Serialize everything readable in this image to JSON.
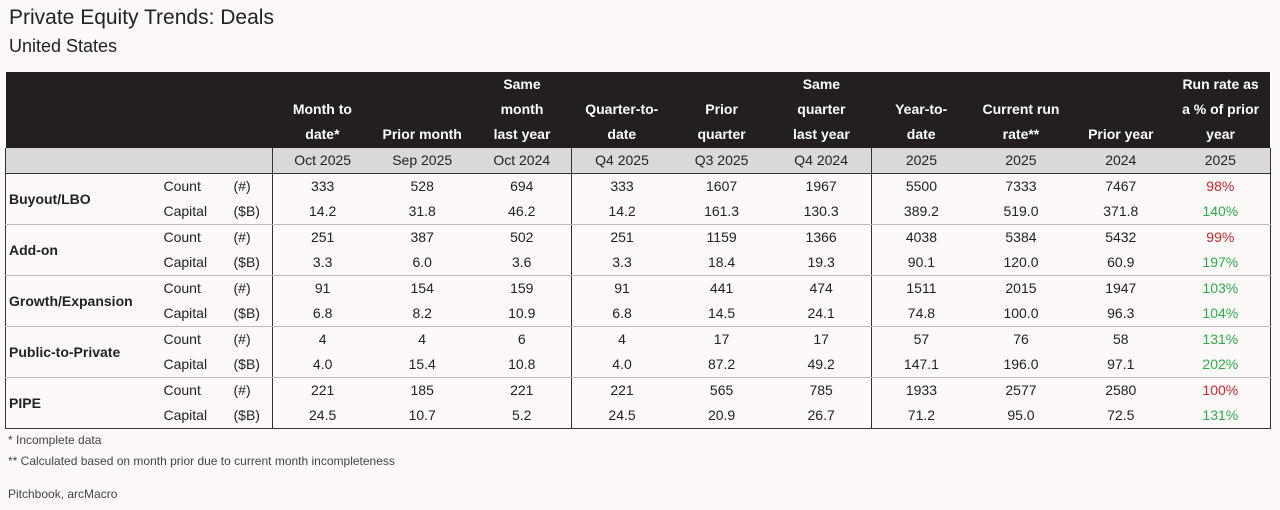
{
  "header": {
    "title": "Private Equity Trends: Deals",
    "subtitle": "United States"
  },
  "table": {
    "columns": [
      [
        "Month to",
        "date*"
      ],
      [
        "Prior month"
      ],
      [
        "Same",
        "month",
        "last year"
      ],
      [
        "Quarter-to-",
        "date"
      ],
      [
        "Prior",
        "quarter"
      ],
      [
        "Same",
        "quarter",
        "last year"
      ],
      [
        "Year-to-",
        "date"
      ],
      [
        "Current run",
        "rate**"
      ],
      [
        "Prior year"
      ],
      [
        "Run rate as",
        "a % of prior",
        "year"
      ]
    ],
    "periods": [
      "Oct 2025",
      "Sep 2025",
      "Oct 2024",
      "Q4 2025",
      "Q3 2025",
      "Q4 2024",
      "2025",
      "2025",
      "2024",
      "2025"
    ],
    "groups": [
      {
        "name": "Buyout/LBO",
        "rows": [
          {
            "metric": "Count",
            "unit": "(#)",
            "cells": [
              "333",
              "528",
              "694",
              "333",
              "1607",
              "1967",
              "5500",
              "7333",
              "7467",
              "98%"
            ],
            "last_cell_color": "#c0282d"
          },
          {
            "metric": "Capital",
            "unit": "($B)",
            "cells": [
              "14.2",
              "31.8",
              "46.2",
              "14.2",
              "161.3",
              "130.3",
              "389.2",
              "519.0",
              "371.8",
              "140%"
            ],
            "last_cell_color": "#2eaa4a"
          }
        ]
      },
      {
        "name": "Add-on",
        "rows": [
          {
            "metric": "Count",
            "unit": "(#)",
            "cells": [
              "251",
              "387",
              "502",
              "251",
              "1159",
              "1366",
              "4038",
              "5384",
              "5432",
              "99%"
            ],
            "last_cell_color": "#c0282d"
          },
          {
            "metric": "Capital",
            "unit": "($B)",
            "cells": [
              "3.3",
              "6.0",
              "3.6",
              "3.3",
              "18.4",
              "19.3",
              "90.1",
              "120.0",
              "60.9",
              "197%"
            ],
            "last_cell_color": "#2eaa4a"
          }
        ]
      },
      {
        "name": "Growth/Expansion",
        "rows": [
          {
            "metric": "Count",
            "unit": "(#)",
            "cells": [
              "91",
              "154",
              "159",
              "91",
              "441",
              "474",
              "1511",
              "2015",
              "1947",
              "103%"
            ],
            "last_cell_color": "#2eaa4a"
          },
          {
            "metric": "Capital",
            "unit": "($B)",
            "cells": [
              "6.8",
              "8.2",
              "10.9",
              "6.8",
              "14.5",
              "24.1",
              "74.8",
              "100.0",
              "96.3",
              "104%"
            ],
            "last_cell_color": "#2eaa4a"
          }
        ]
      },
      {
        "name": "Public-to-Private",
        "rows": [
          {
            "metric": "Count",
            "unit": "(#)",
            "cells": [
              "4",
              "4",
              "6",
              "4",
              "17",
              "17",
              "57",
              "76",
              "58",
              "131%"
            ],
            "last_cell_color": "#2eaa4a"
          },
          {
            "metric": "Capital",
            "unit": "($B)",
            "cells": [
              "4.0",
              "15.4",
              "10.8",
              "4.0",
              "87.2",
              "49.2",
              "147.1",
              "196.0",
              "97.1",
              "202%"
            ],
            "last_cell_color": "#2eaa4a"
          }
        ]
      },
      {
        "name": "PIPE",
        "rows": [
          {
            "metric": "Count",
            "unit": "(#)",
            "cells": [
              "221",
              "185",
              "221",
              "221",
              "565",
              "785",
              "1933",
              "2577",
              "2580",
              "100%"
            ],
            "last_cell_color": "#c0282d"
          },
          {
            "metric": "Capital",
            "unit": "($B)",
            "cells": [
              "24.5",
              "10.7",
              "5.2",
              "24.5",
              "20.9",
              "26.7",
              "71.2",
              "95.0",
              "72.5",
              "131%"
            ],
            "last_cell_color": "#2eaa4a"
          }
        ]
      }
    ]
  },
  "footnotes": [
    "* Incomplete data",
    "** Calculated based on month prior due to current month incompleteness"
  ],
  "source": "Pitchbook, arcMacro"
}
